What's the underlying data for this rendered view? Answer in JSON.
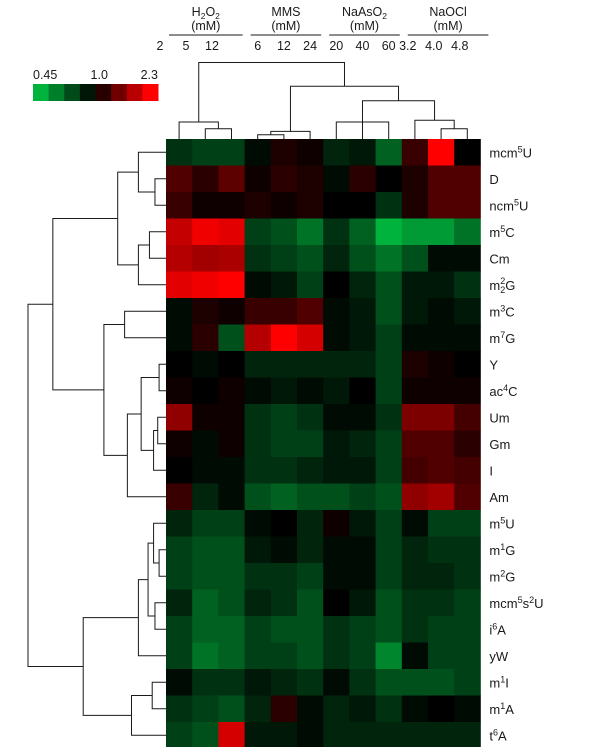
{
  "chart_data": {
    "type": "heatmap",
    "color_scale": {
      "min_label": "0.45",
      "mid_label": "1.0",
      "max_label": "2.3",
      "low_color": "#00b33c",
      "mid_color": "#000000",
      "high_color": "#ff0000",
      "min": 0.45,
      "mid": 1.0,
      "max": 2.3
    },
    "treatments": [
      {
        "line1": "H",
        "sub1": "2",
        "line1b": "O",
        "sub2": "2",
        "unit": "(mM)",
        "doses": [
          "2",
          "5",
          "12"
        ]
      },
      {
        "line1": "MMS",
        "unit": "(mM)",
        "doses": [
          "6",
          "12",
          "24"
        ]
      },
      {
        "line1": "NaAsO",
        "sub1": "2",
        "unit": "(mM)",
        "doses": [
          "20",
          "40",
          "60"
        ]
      },
      {
        "line1": "NaOCl",
        "unit": "(mM)",
        "doses": [
          "3.2",
          "4.0",
          "4.8"
        ]
      }
    ],
    "rows": [
      {
        "label": "mcm",
        "sup": "5",
        "tail": "U",
        "values": [
          0.8,
          0.75,
          0.75,
          0.95,
          1.1,
          1.05,
          0.85,
          0.9,
          0.65,
          1.2,
          2.3,
          1.0
        ]
      },
      {
        "label": "D",
        "values": [
          1.3,
          1.15,
          1.35,
          1.05,
          1.15,
          1.1,
          0.95,
          1.15,
          1.0,
          1.1,
          1.3,
          1.3
        ]
      },
      {
        "label": "ncm",
        "sup": "5",
        "tail": "U",
        "values": [
          1.2,
          1.05,
          1.05,
          1.1,
          1.05,
          1.1,
          1.0,
          1.0,
          0.8,
          1.1,
          1.3,
          1.3
        ]
      },
      {
        "label": "m",
        "sup": "5",
        "tail": "C",
        "values": [
          1.9,
          2.2,
          2.1,
          0.75,
          0.7,
          0.6,
          0.8,
          0.65,
          0.45,
          0.5,
          0.5,
          0.6
        ]
      },
      {
        "label": "Cm",
        "values": [
          1.8,
          1.7,
          1.75,
          0.8,
          0.75,
          0.7,
          0.85,
          0.7,
          0.6,
          0.7,
          0.95,
          0.95
        ]
      },
      {
        "label": "m",
        "sub": "2",
        "sup": "2",
        "tail": "G",
        "values": [
          2.1,
          2.2,
          2.3,
          0.95,
          0.9,
          0.75,
          1.0,
          0.85,
          0.7,
          0.9,
          0.9,
          0.8
        ]
      },
      {
        "label": "m",
        "sup": "3",
        "tail": "C",
        "values": [
          0.95,
          1.1,
          1.05,
          1.2,
          1.2,
          1.3,
          0.95,
          0.9,
          0.7,
          0.9,
          0.95,
          0.9
        ]
      },
      {
        "label": "m",
        "sup": "7",
        "tail": "G",
        "values": [
          0.95,
          1.15,
          0.7,
          1.8,
          2.3,
          2.0,
          0.95,
          0.9,
          0.75,
          0.95,
          0.95,
          0.95
        ]
      },
      {
        "label": "Y",
        "values": [
          1.0,
          0.95,
          1.0,
          0.85,
          0.85,
          0.85,
          0.85,
          0.85,
          0.75,
          1.1,
          1.05,
          1.0
        ]
      },
      {
        "label": "ac",
        "sup": "4",
        "tail": "C",
        "values": [
          1.05,
          1.0,
          1.05,
          0.95,
          0.9,
          0.95,
          0.9,
          1.0,
          0.75,
          1.05,
          1.05,
          1.05
        ]
      },
      {
        "label": "Um",
        "values": [
          1.6,
          1.05,
          1.05,
          0.8,
          0.75,
          0.8,
          0.95,
          0.95,
          0.8,
          1.5,
          1.5,
          1.25
        ]
      },
      {
        "label": "Gm",
        "values": [
          1.05,
          0.95,
          1.05,
          0.8,
          0.75,
          0.75,
          0.9,
          0.85,
          0.75,
          1.3,
          1.3,
          1.15
        ]
      },
      {
        "label": "I",
        "values": [
          1.0,
          0.95,
          0.95,
          0.8,
          0.8,
          0.85,
          0.9,
          0.9,
          0.75,
          1.25,
          1.3,
          1.25
        ]
      },
      {
        "label": "Am",
        "values": [
          1.2,
          0.85,
          0.95,
          0.7,
          0.65,
          0.7,
          0.7,
          0.75,
          0.7,
          1.6,
          1.7,
          1.3
        ]
      },
      {
        "label": "m",
        "sup": "5",
        "tail": "U",
        "values": [
          0.85,
          0.75,
          0.75,
          0.95,
          1.0,
          0.85,
          1.05,
          0.9,
          0.75,
          0.95,
          0.75,
          0.75
        ]
      },
      {
        "label": "m",
        "sup": "1",
        "tail": "G",
        "values": [
          0.75,
          0.7,
          0.7,
          0.9,
          0.95,
          0.85,
          0.95,
          0.95,
          0.75,
          0.85,
          0.8,
          0.8
        ]
      },
      {
        "label": "m",
        "sup": "2",
        "tail": "G",
        "values": [
          0.75,
          0.7,
          0.7,
          0.8,
          0.8,
          0.75,
          0.95,
          0.95,
          0.75,
          0.85,
          0.85,
          0.8
        ]
      },
      {
        "label": "mcm",
        "sup": "5",
        "tail": "s",
        "sup2": "2",
        "tail2": "U",
        "values": [
          0.85,
          0.65,
          0.7,
          0.85,
          0.8,
          0.7,
          1.0,
          0.9,
          0.7,
          0.8,
          0.8,
          0.75
        ]
      },
      {
        "label": "i",
        "sup": "6",
        "tail": "A",
        "values": [
          0.75,
          0.65,
          0.65,
          0.75,
          0.7,
          0.7,
          0.8,
          0.75,
          0.7,
          0.8,
          0.75,
          0.75
        ]
      },
      {
        "label": "yW",
        "values": [
          0.75,
          0.6,
          0.65,
          0.75,
          0.75,
          0.7,
          0.8,
          0.75,
          0.55,
          0.95,
          0.75,
          0.75
        ]
      },
      {
        "label": "m",
        "sup": "1",
        "tail": "I",
        "values": [
          0.95,
          0.8,
          0.8,
          0.9,
          0.85,
          0.8,
          0.95,
          0.8,
          0.7,
          0.7,
          0.7,
          0.75
        ]
      },
      {
        "label": "m",
        "sup": "1",
        "tail": "A",
        "values": [
          0.8,
          0.75,
          0.7,
          0.85,
          1.15,
          0.95,
          0.85,
          0.9,
          0.8,
          0.95,
          1.0,
          0.95
        ]
      },
      {
        "label": "t",
        "sup": "6",
        "tail": "A",
        "values": [
          0.75,
          0.7,
          2.0,
          0.9,
          0.9,
          0.95,
          0.85,
          0.85,
          0.85,
          0.85,
          0.85,
          0.85
        ]
      }
    ]
  }
}
